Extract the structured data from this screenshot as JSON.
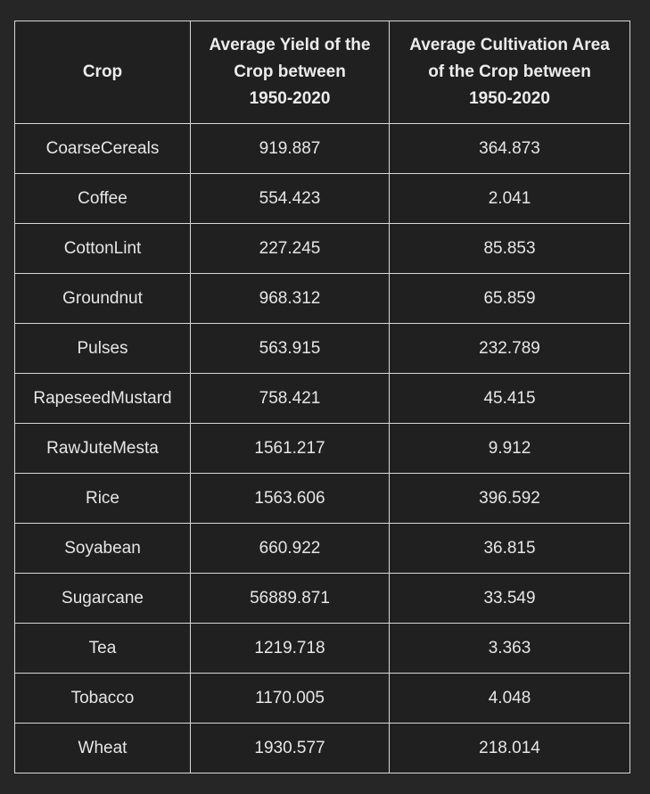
{
  "table": {
    "headers": {
      "crop": "Crop",
      "yield_lines": [
        "Average Yield of the",
        "Crop between",
        "1950-2020"
      ],
      "area_lines": [
        "Average Cultivation Area",
        "of the Crop between",
        "1950-2020"
      ]
    },
    "rows": [
      {
        "crop": "CoarseCereals",
        "yield": "919.887",
        "area": "364.873"
      },
      {
        "crop": "Coffee",
        "yield": "554.423",
        "area": "2.041"
      },
      {
        "crop": "CottonLint",
        "yield": "227.245",
        "area": "85.853"
      },
      {
        "crop": "Groundnut",
        "yield": "968.312",
        "area": "65.859"
      },
      {
        "crop": "Pulses",
        "yield": "563.915",
        "area": "232.789"
      },
      {
        "crop": "RapeseedMustard",
        "yield": "758.421",
        "area": "45.415"
      },
      {
        "crop": "RawJuteMesta",
        "yield": "1561.217",
        "area": "9.912"
      },
      {
        "crop": "Rice",
        "yield": "1563.606",
        "area": "396.592"
      },
      {
        "crop": "Soyabean",
        "yield": "660.922",
        "area": "36.815"
      },
      {
        "crop": "Sugarcane",
        "yield": "56889.871",
        "area": "33.549"
      },
      {
        "crop": "Tea",
        "yield": "1219.718",
        "area": "3.363"
      },
      {
        "crop": "Tobacco",
        "yield": "1170.005",
        "area": "4.048"
      },
      {
        "crop": "Wheat",
        "yield": "1930.577",
        "area": "218.014"
      }
    ]
  }
}
